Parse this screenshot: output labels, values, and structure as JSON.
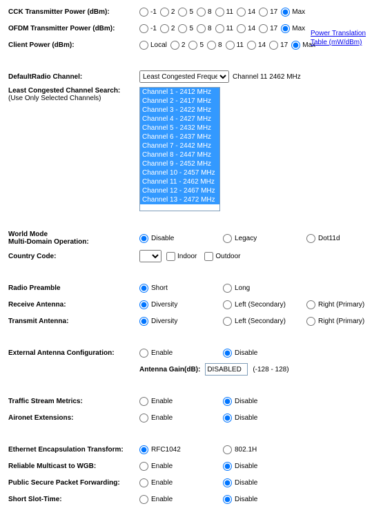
{
  "power_rows": [
    {
      "label": "CCK Transmitter Power (dBm):",
      "opts": [
        "-1",
        "2",
        "5",
        "8",
        "11",
        "14",
        "17",
        "Max"
      ],
      "sel": "Max"
    },
    {
      "label": "OFDM Transmitter Power (dBm):",
      "opts": [
        "-1",
        "2",
        "5",
        "8",
        "11",
        "14",
        "17",
        "Max"
      ],
      "sel": "Max"
    },
    {
      "label": "Client Power (dBm):",
      "opts": [
        "Local",
        "2",
        "5",
        "8",
        "11",
        "14",
        "17",
        "Max"
      ],
      "sel": "Max"
    }
  ],
  "link_text": "Power Translation Table (mW/dBm)",
  "labels": {
    "default_radio": "DefaultRadio Channel:",
    "lcc": "Least Congested Channel Search:",
    "lcc_sub": "(Use Only Selected Channels)",
    "world_title": "World Mode",
    "world_sub": "Multi-Domain Operation:",
    "country": "Country Code:",
    "indoor": "Indoor",
    "outdoor": "Outdoor",
    "preamble": "Radio Preamble",
    "receive": "Receive Antenna:",
    "transmit": "Transmit Antenna:",
    "ext_ant": "External Antenna Configuration:",
    "gain": "Antenna Gain(dB):",
    "gain_val": "DISABLED",
    "gain_range": "(-128 - 128)",
    "tsm": "Traffic Stream Metrics:",
    "aironet": "Aironet Extensions:",
    "eet": "Ethernet Encapsulation Transform:",
    "rmw": "Reliable Multicast to WGB:",
    "pspf": "Public Secure Packet Forwarding:",
    "sst": "Short Slot-Time:"
  },
  "default_radio_select": "Least Congested Frequency",
  "default_radio_info": "Channel 11 2462 MHz",
  "channels": [
    "Channel 1 - 2412 MHz",
    "Channel 2 - 2417 MHz",
    "Channel 3 - 2422 MHz",
    "Channel 4 - 2427 MHz",
    "Channel 5 - 2432 MHz",
    "Channel 6 - 2437 MHz",
    "Channel 7 - 2442 MHz",
    "Channel 8 - 2447 MHz",
    "Channel 9 - 2452 MHz",
    "Channel 10 - 2457 MHz",
    "Channel 11 - 2462 MHz",
    "Channel 12 - 2467 MHz",
    "Channel 13 - 2472 MHz"
  ],
  "world_opts": [
    "Disable",
    "Legacy",
    "Dot11d"
  ],
  "world_sel": "Disable",
  "preamble_opts": [
    "Short",
    "Long"
  ],
  "preamble_sel": "Short",
  "antenna_opts": [
    "Diversity",
    "Left (Secondary)",
    "Right (Primary)"
  ],
  "receive_sel": "Diversity",
  "transmit_sel": "Diversity",
  "enable_disable": [
    "Enable",
    "Disable"
  ],
  "ext_ant_sel": "Disable",
  "tsm_sel": "Disable",
  "aironet_sel": "Disable",
  "eet_opts": [
    "RFC1042",
    "802.1H"
  ],
  "eet_sel": "RFC1042",
  "rmw_sel": "Disable",
  "pspf_sel": "Disable",
  "sst_sel": "Disable"
}
